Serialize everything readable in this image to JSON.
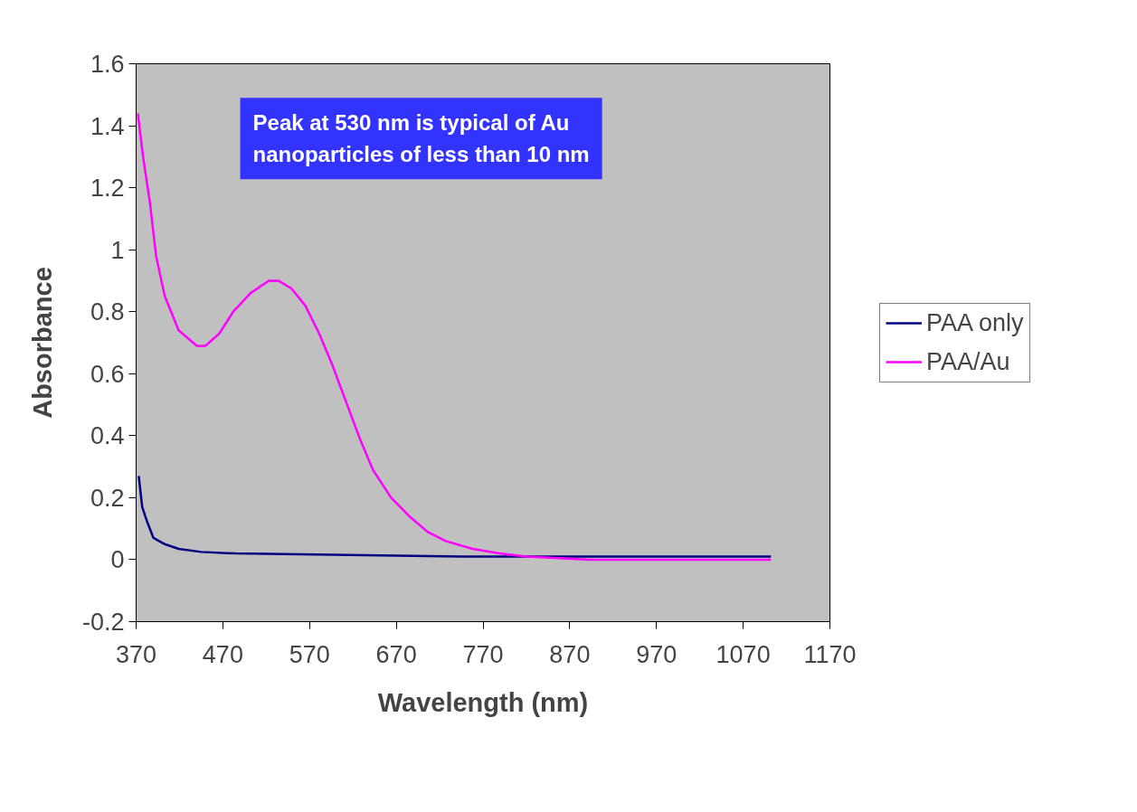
{
  "chart_data": {
    "type": "line",
    "xlabel": "Wavelength (nm)",
    "ylabel": "Absorbance",
    "xlim": [
      370,
      1170
    ],
    "xticks": [
      370,
      470,
      570,
      670,
      770,
      870,
      970,
      1070,
      1170
    ],
    "ylim": [
      -0.2,
      1.6
    ],
    "yticks": [
      -0.2,
      0,
      0.2,
      0.4,
      0.6,
      0.8,
      1,
      1.2,
      1.4,
      1.6
    ],
    "grid": false,
    "legend": "right",
    "marker": "none",
    "line_style": "solid",
    "annotations": [
      "Peak at 530 nm is typical of Au\nnanoparticles of less than 10 nm"
    ],
    "series": [
      {
        "name": "PAA only",
        "color": "#000080",
        "x": [
          373,
          377,
          383,
          390,
          403,
          419,
          445,
          485,
          753,
          1092,
          1102
        ],
        "values": [
          0.27,
          0.17,
          0.12,
          0.07,
          0.05,
          0.035,
          0.025,
          0.02,
          0.01,
          0.01,
          0.01
        ]
      },
      {
        "name": "PAA/Au",
        "color": "#ff00ff",
        "x": [
          372,
          378,
          386,
          393,
          403,
          419,
          440,
          450,
          466,
          482,
          502,
          523,
          534,
          549,
          565,
          581,
          596,
          612,
          628,
          643,
          664,
          685,
          706,
          727,
          758,
          789,
          820,
          893,
          1102
        ],
        "values": [
          1.44,
          1.3,
          1.15,
          0.98,
          0.85,
          0.74,
          0.69,
          0.69,
          0.73,
          0.8,
          0.86,
          0.9,
          0.9,
          0.875,
          0.82,
          0.73,
          0.63,
          0.51,
          0.39,
          0.29,
          0.2,
          0.14,
          0.09,
          0.06,
          0.035,
          0.02,
          0.01,
          0,
          0
        ]
      }
    ]
  }
}
